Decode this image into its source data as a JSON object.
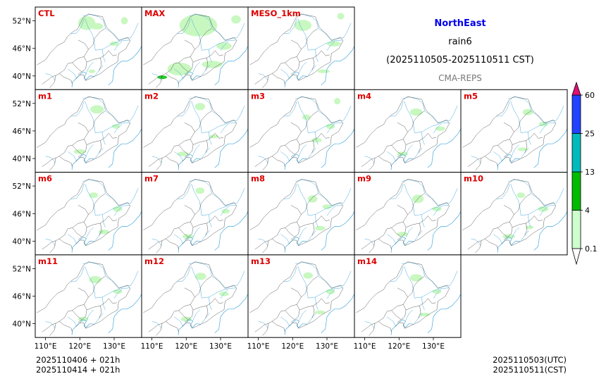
{
  "chart_data": {
    "type": "heatmap",
    "title": "NorthEast",
    "subtitle": "rain6",
    "period": "(2025110505-2025110511 CST)",
    "source": "CMA-REPS",
    "title_color": "#0000ee",
    "panel_label_color": "#dd0000",
    "y_ticks": [
      "52°N",
      "46°N",
      "40°N"
    ],
    "x_ticks": [
      "110°E",
      "120°E",
      "130°E"
    ],
    "lat_range": [
      37,
      55
    ],
    "lon_range": [
      107,
      138
    ],
    "panels": [
      {
        "label": "CTL",
        "blobs": [
          [
            124,
            50.7,
            0.7,
            0.35,
            "4"
          ],
          [
            125,
            50.8,
            1.8,
            0.7,
            "0.1"
          ],
          [
            122,
            51.5,
            2.5,
            1.5,
            "0.1"
          ],
          [
            130,
            47,
            1.3,
            0.5,
            "0.1"
          ],
          [
            123.5,
            41,
            1.0,
            0.4,
            "0.1"
          ],
          [
            133,
            52,
            1.0,
            0.8,
            "0.1"
          ]
        ]
      },
      {
        "label": "MAX",
        "blobs": [
          [
            123.5,
            50.8,
            1.2,
            0.6,
            "13"
          ],
          [
            123.7,
            50.9,
            3.2,
            1.4,
            "4"
          ],
          [
            123.5,
            51,
            5.5,
            2.4,
            "0.1"
          ],
          [
            113,
            39.7,
            1.4,
            0.4,
            "4"
          ],
          [
            118,
            41.5,
            3.5,
            1.4,
            "0.1"
          ],
          [
            127.5,
            42.5,
            3.0,
            0.8,
            "0.1"
          ],
          [
            131,
            46.5,
            2.2,
            0.8,
            "0.1"
          ],
          [
            134.5,
            52.3,
            1.4,
            0.9,
            "0.1"
          ]
        ]
      },
      {
        "label": "MESO_1km",
        "blobs": [
          [
            132,
            47,
            2.0,
            0.6,
            "0.1"
          ],
          [
            123,
            51,
            2.5,
            1.2,
            "0.1"
          ],
          [
            129,
            41,
            1.8,
            0.4,
            "0.1"
          ],
          [
            134,
            53,
            1.0,
            0.7,
            "0.1"
          ]
        ]
      },
      {
        "label": "m1",
        "blobs": [
          [
            124.5,
            50.6,
            0.9,
            0.4,
            "4"
          ],
          [
            125,
            50.7,
            2.0,
            0.9,
            "0.1"
          ],
          [
            130.5,
            47,
            1.2,
            0.5,
            "0.1"
          ],
          [
            120,
            41.5,
            1.8,
            0.5,
            "0.1"
          ]
        ]
      },
      {
        "label": "m2",
        "blobs": [
          [
            124.5,
            51.2,
            0.6,
            0.4,
            "4"
          ],
          [
            124,
            51.3,
            1.5,
            0.8,
            "0.1"
          ],
          [
            128,
            44.8,
            1.4,
            0.4,
            "0.1"
          ],
          [
            119,
            41,
            1.6,
            0.5,
            "0.1"
          ]
        ]
      },
      {
        "label": "m3",
        "blobs": [
          [
            124,
            49,
            1.2,
            0.6,
            "0.1"
          ],
          [
            131,
            47,
            1.3,
            0.6,
            "0.1"
          ],
          [
            127,
            44,
            1.5,
            0.5,
            "0.1"
          ],
          [
            133,
            52.5,
            0.9,
            0.7,
            "0.1"
          ]
        ]
      },
      {
        "label": "m4",
        "blobs": [
          [
            125,
            50.2,
            0.7,
            0.4,
            "4"
          ],
          [
            125,
            50.1,
            1.8,
            0.8,
            "0.1"
          ],
          [
            132,
            46.5,
            1.4,
            0.5,
            "0.1"
          ],
          [
            121,
            41,
            1.6,
            0.5,
            "0.1"
          ]
        ]
      },
      {
        "label": "m5",
        "blobs": [
          [
            127,
            50,
            0.6,
            0.35,
            "4"
          ],
          [
            126.5,
            50.1,
            1.5,
            0.7,
            "0.1"
          ],
          [
            131,
            47.5,
            1.3,
            0.5,
            "0.1"
          ],
          [
            125,
            42,
            1.4,
            0.4,
            "0.1"
          ]
        ]
      },
      {
        "label": "m6",
        "blobs": [
          [
            124,
            50,
            1.3,
            0.6,
            "0.1"
          ],
          [
            131,
            47,
            1.4,
            0.6,
            "0.1"
          ],
          [
            127,
            42,
            1.6,
            0.5,
            "0.1"
          ]
        ]
      },
      {
        "label": "m7",
        "blobs": [
          [
            124,
            51,
            1.3,
            0.7,
            "0.1"
          ],
          [
            131.5,
            46.5,
            1.2,
            0.5,
            "0.1"
          ],
          [
            120.5,
            41,
            1.6,
            0.5,
            "0.1"
          ]
        ]
      },
      {
        "label": "m8",
        "blobs": [
          [
            126.2,
            49,
            0.6,
            0.4,
            "4"
          ],
          [
            125.8,
            49.2,
            1.4,
            0.8,
            "0.1"
          ],
          [
            130,
            47.5,
            1.3,
            0.5,
            "0.1"
          ],
          [
            128,
            42.8,
            1.5,
            0.5,
            "0.1"
          ]
        ]
      },
      {
        "label": "m9",
        "blobs": [
          [
            125.5,
            49,
            0.7,
            0.4,
            "4"
          ],
          [
            125.5,
            49.2,
            1.7,
            0.9,
            "0.1"
          ],
          [
            131,
            47,
            1.4,
            0.5,
            "0.1"
          ],
          [
            121,
            41.5,
            1.6,
            0.5,
            "0.1"
          ]
        ]
      },
      {
        "label": "m10",
        "blobs": [
          [
            124.5,
            50,
            1.2,
            0.6,
            "0.1"
          ],
          [
            131,
            47,
            1.5,
            0.6,
            "0.1"
          ],
          [
            121,
            41,
            1.8,
            0.5,
            "0.1"
          ],
          [
            127,
            43,
            1.2,
            0.4,
            "0.1"
          ]
        ]
      },
      {
        "label": "m11",
        "blobs": [
          [
            124.5,
            49.5,
            0.6,
            0.35,
            "4"
          ],
          [
            124.5,
            49.6,
            1.8,
            0.8,
            "0.1"
          ],
          [
            131,
            47,
            1.3,
            0.5,
            "0.1"
          ],
          [
            121,
            41,
            1.5,
            0.5,
            "0.1"
          ]
        ]
      },
      {
        "label": "m12",
        "blobs": [
          [
            124.5,
            50.1,
            0.4,
            0.3,
            "4"
          ],
          [
            124.2,
            50.3,
            1.6,
            0.8,
            "0.1"
          ],
          [
            131,
            46.5,
            1.4,
            0.5,
            "0.1"
          ],
          [
            120,
            41,
            1.6,
            0.5,
            "0.1"
          ]
        ]
      },
      {
        "label": "m13",
        "blobs": [
          [
            124.5,
            50.5,
            1.4,
            0.7,
            "0.1"
          ],
          [
            131,
            47,
            1.3,
            0.6,
            "0.1"
          ],
          [
            128,
            42.5,
            1.5,
            0.4,
            "0.1"
          ]
        ]
      },
      {
        "label": "m14",
        "blobs": [
          [
            125.5,
            49.8,
            0.6,
            0.35,
            "4"
          ],
          [
            125,
            50,
            1.8,
            0.8,
            "0.1"
          ],
          [
            131,
            47,
            1.3,
            0.5,
            "0.1"
          ],
          [
            127.5,
            42,
            1.5,
            0.4,
            "0.1"
          ]
        ]
      }
    ],
    "colorbar": {
      "levels": [
        "0.1",
        "4",
        "13",
        "25",
        "60"
      ],
      "colors": [
        "#ccffcc",
        "#00bb00",
        "#00bbbb",
        "#2244ff"
      ],
      "under_color": "#ffffff",
      "over_color": "#dd1177",
      "fill_colors": {
        "0.1": "#c8f8c0",
        "4": "#22cc22",
        "13": "#00aa00"
      }
    },
    "footer_left": [
      "2025110406  +  021h",
      "2025110414  +  021h"
    ],
    "footer_right": [
      "2025110503(UTC)",
      "2025110511(CST)"
    ]
  }
}
